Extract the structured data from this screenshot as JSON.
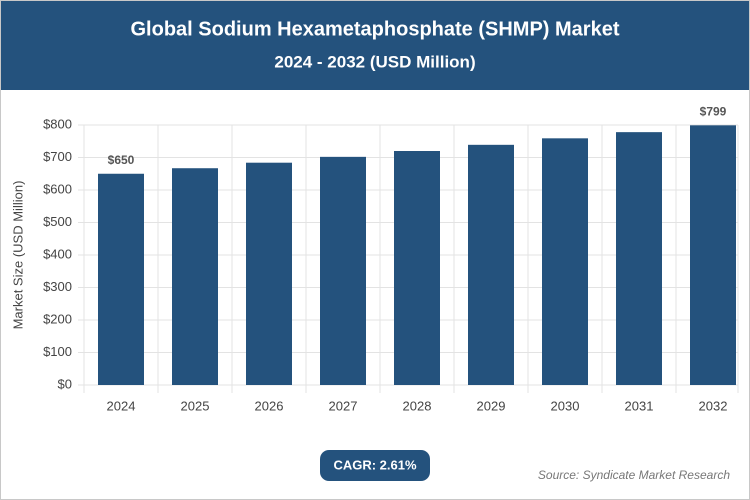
{
  "chart_data": {
    "type": "bar",
    "title": "Global Sodium Hexametaphosphate (SHMP) Market",
    "subtitle": "2024 - 2032 (USD Million)",
    "y_label": "Market Size (USD Million)",
    "categories": [
      "2024",
      "2025",
      "2026",
      "2027",
      "2028",
      "2029",
      "2030",
      "2031",
      "2032"
    ],
    "values": [
      650,
      667,
      684,
      702,
      720,
      739,
      759,
      778,
      799
    ],
    "value_labels": [
      "$650",
      null,
      null,
      null,
      null,
      null,
      null,
      null,
      "$799"
    ],
    "color": "#24527d",
    "ylim": [
      0,
      800
    ],
    "yticks": [
      {
        "value": 0,
        "label": "$0"
      },
      {
        "value": 100,
        "label": "$100"
      },
      {
        "value": 200,
        "label": "$200"
      },
      {
        "value": 300,
        "label": "$300"
      },
      {
        "value": 400,
        "label": "$400"
      },
      {
        "value": 500,
        "label": "$500"
      },
      {
        "value": 600,
        "label": "$600"
      },
      {
        "value": 700,
        "label": "$700"
      },
      {
        "value": 800,
        "label": "$800"
      }
    ],
    "grid": true,
    "cagr": "CAGR: 2.61%",
    "source": "Source: Syndicate Market Research"
  }
}
